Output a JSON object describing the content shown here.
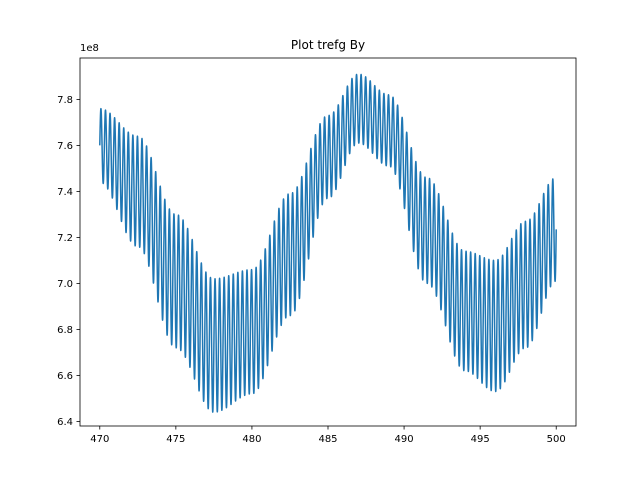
{
  "chart_data": {
    "type": "line",
    "title": "Plot trefg By",
    "xlabel": "",
    "ylabel": "",
    "y_offset_label": "1e8",
    "xlim": [
      468.7,
      501.3
    ],
    "ylim": [
      6.38,
      7.98
    ],
    "x_ticks": [
      470,
      475,
      480,
      485,
      490,
      495,
      500
    ],
    "x_tick_labels": [
      "470",
      "475",
      "480",
      "485",
      "490",
      "495",
      "500"
    ],
    "y_ticks": [
      6.4,
      6.6,
      6.8,
      7.0,
      7.2,
      7.4,
      7.6,
      7.8
    ],
    "y_tick_labels": [
      "6.4",
      "6.6",
      "6.8",
      "7.0",
      "7.2",
      "7.4",
      "7.6",
      "7.8"
    ],
    "grid": false,
    "legend": "none",
    "series": [
      {
        "color": "#1f77b4",
        "x_range": [
          470,
          500
        ],
        "oscillation_period": 0.3,
        "upper_envelope": {
          "x": [
            470,
            472.5,
            475,
            477.5,
            480,
            482.5,
            485,
            487,
            489,
            491.5,
            494,
            496,
            498,
            500
          ],
          "y": [
            7.76,
            7.64,
            7.3,
            7.02,
            7.06,
            7.39,
            7.73,
            7.91,
            7.82,
            7.46,
            7.14,
            7.1,
            7.27,
            7.46
          ]
        },
        "lower_envelope": {
          "x": [
            470,
            472.5,
            475,
            477.5,
            480,
            482.5,
            485,
            487,
            489,
            491.5,
            494,
            496,
            498,
            500
          ],
          "y": [
            7.44,
            7.16,
            6.72,
            6.44,
            6.52,
            6.86,
            7.37,
            7.61,
            7.51,
            7.0,
            6.62,
            6.53,
            6.72,
            7.01
          ]
        }
      }
    ]
  }
}
